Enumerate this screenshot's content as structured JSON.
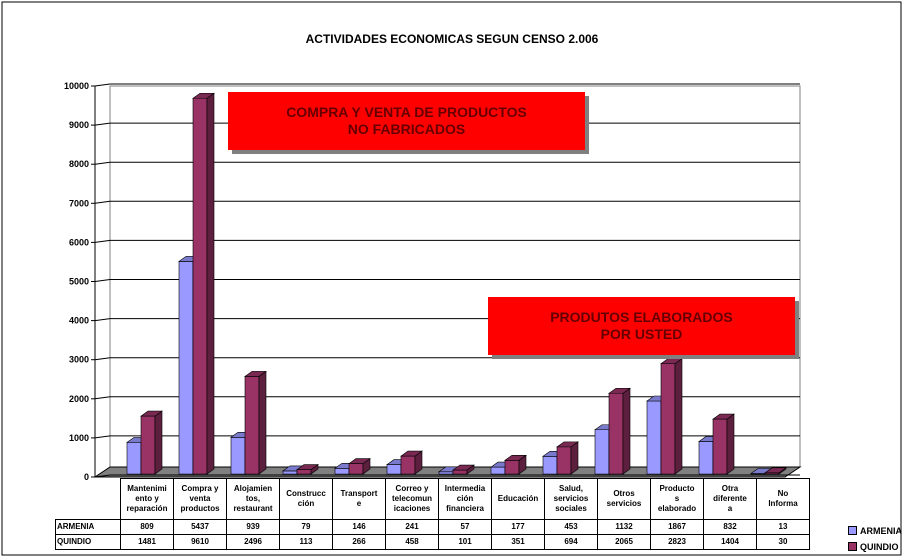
{
  "chart_data": {
    "type": "bar3d",
    "title": "ACTIVIDADES ECONOMICAS SEGUN CENSO 2.006",
    "categories": [
      "Mantenimi\nento y\nreparación",
      "Compra y\nventa\nproductos",
      "Alojamien\ntos,\nrestaurant",
      "Construcc\nción",
      "Transport\ne",
      "Correo y\ntelecomun\nicaciones",
      "Intermedia\nción\nfinanciera",
      "Educación",
      "Salud,\nservicios\nsociales",
      "Otros\nservicios",
      "Producto\ns\nelaborado",
      "Otra\ndiferente\na",
      "No\nInforma"
    ],
    "series": [
      {
        "name": "ARMENIA",
        "color": "#9999ff",
        "values": [
          809,
          5437,
          939,
          79,
          146,
          241,
          57,
          177,
          453,
          1132,
          1867,
          832,
          13
        ]
      },
      {
        "name": "QUINDIO",
        "color": "#993366",
        "values": [
          1481,
          9610,
          2496,
          113,
          266,
          458,
          101,
          351,
          694,
          2065,
          2823,
          1404,
          30
        ]
      }
    ],
    "ylim": [
      0,
      10000
    ],
    "yticks": [
      0,
      1000,
      2000,
      3000,
      4000,
      5000,
      6000,
      7000,
      8000,
      9000,
      10000
    ],
    "grid": true,
    "annotations": [
      "COMPRA Y VENTA DE PRODUCTOS\nNO FABRICADOS",
      "PRODUTOS ELABORADOS\nPOR USTED"
    ]
  }
}
